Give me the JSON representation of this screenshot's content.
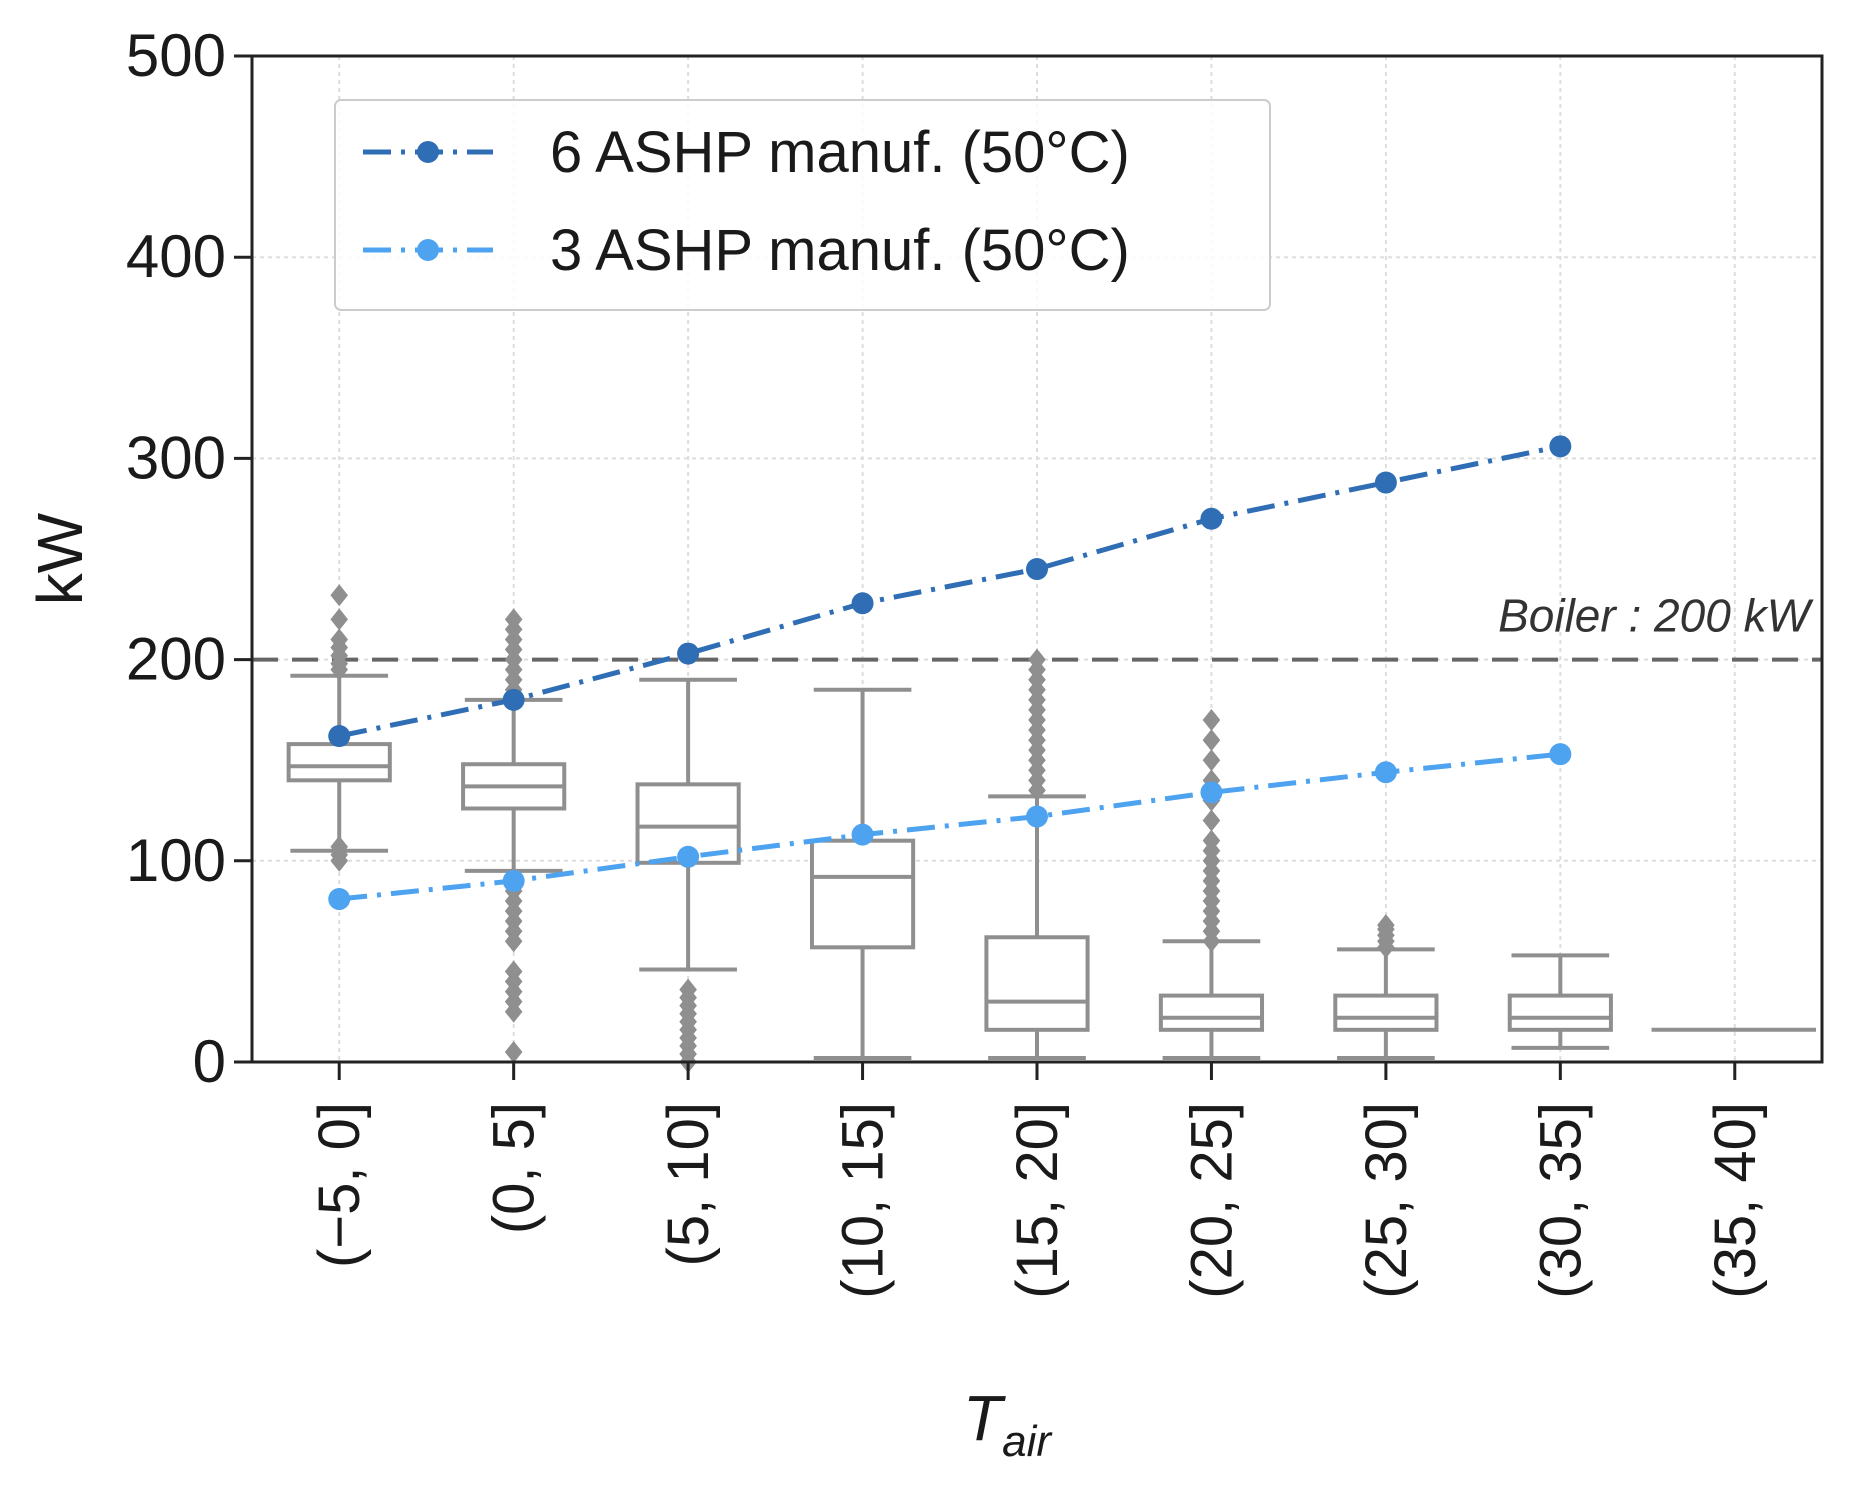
{
  "chart_data": {
    "type": "box",
    "title": "",
    "xlabel_main": "T",
    "xlabel_sub": "air",
    "ylabel": "kW",
    "ylim": [
      0,
      500
    ],
    "yticks": [
      0,
      100,
      200,
      300,
      400,
      500
    ],
    "grid": true,
    "categories": [
      "(−5, 0]",
      "(0, 5]",
      "(5, 10]",
      "(10, 15]",
      "(15, 20]",
      "(20, 25]",
      "(25, 30]",
      "(30, 35]",
      "(35, 40]"
    ],
    "boxes": [
      {
        "whisker_low": 105,
        "q1": 140,
        "median": 147,
        "q3": 158,
        "whisker_high": 192,
        "outliers": [
          100,
          103,
          107,
          195,
          198,
          202,
          206,
          210,
          220,
          232
        ]
      },
      {
        "whisker_low": 95,
        "q1": 126,
        "median": 137,
        "q3": 148,
        "whisker_high": 180,
        "outliers": [
          5,
          25,
          30,
          35,
          40,
          45,
          60,
          65,
          70,
          75,
          80,
          85,
          90,
          185,
          190,
          195,
          200,
          205,
          210,
          215,
          220
        ]
      },
      {
        "whisker_low": 46,
        "q1": 99,
        "median": 117,
        "q3": 138,
        "whisker_high": 190,
        "outliers": [
          0,
          4,
          8,
          12,
          16,
          20,
          24,
          28,
          32,
          36
        ]
      },
      {
        "whisker_low": 2,
        "q1": 57,
        "median": 92,
        "q3": 110,
        "whisker_high": 185,
        "outliers": []
      },
      {
        "whisker_low": 2,
        "q1": 16,
        "median": 30,
        "q3": 62,
        "whisker_high": 132,
        "outliers": [
          135,
          140,
          145,
          150,
          155,
          160,
          165,
          170,
          175,
          180,
          185,
          190,
          195,
          200
        ]
      },
      {
        "whisker_low": 2,
        "q1": 16,
        "median": 22,
        "q3": 33,
        "whisker_high": 60,
        "outliers": [
          60,
          65,
          70,
          75,
          80,
          85,
          90,
          95,
          100,
          105,
          110,
          120,
          130,
          140,
          150,
          160,
          170
        ]
      },
      {
        "whisker_low": 2,
        "q1": 16,
        "median": 22,
        "q3": 33,
        "whisker_high": 56,
        "outliers": [
          57,
          60,
          63,
          66,
          68
        ]
      },
      {
        "whisker_low": 7,
        "q1": 16,
        "median": 22,
        "q3": 33,
        "whisker_high": 53,
        "outliers": []
      },
      {
        "whisker_low": 16,
        "q1": 16,
        "median": 16,
        "q3": 16,
        "whisker_high": 16,
        "outliers": []
      }
    ],
    "series": [
      {
        "name": "6 ASHP manuf. (50°C)",
        "color": "#2f6db5",
        "points": [
          [
            0,
            162
          ],
          [
            1,
            180
          ],
          [
            2,
            203
          ],
          [
            3,
            228
          ],
          [
            4,
            245
          ],
          [
            5,
            270
          ],
          [
            6,
            288
          ],
          [
            7,
            306
          ]
        ]
      },
      {
        "name": "3 ASHP manuf. (50°C)",
        "color": "#4ea3f0",
        "points": [
          [
            0,
            81
          ],
          [
            1,
            90
          ],
          [
            2,
            102
          ],
          [
            3,
            113
          ],
          [
            4,
            122
          ],
          [
            5,
            134
          ],
          [
            6,
            144
          ],
          [
            7,
            153
          ]
        ]
      }
    ],
    "reference_line": {
      "value": 200,
      "label": "Boiler : 200 kW",
      "color": "#666666"
    },
    "box_color": "#8f8f8f",
    "legend_location": "upper-left"
  }
}
